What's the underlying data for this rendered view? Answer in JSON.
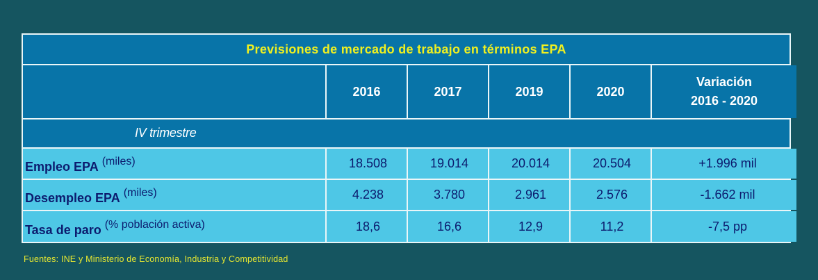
{
  "table": {
    "title": "Previsiones de mercado de trabajo en términos EPA",
    "headers": [
      "",
      "2016",
      "2017",
      "2019",
      "2020"
    ],
    "variation_header_line1": "Variación",
    "variation_header_line2": "2016 - 2020",
    "section_label": "IV trimestre",
    "rows": [
      {
        "label": "Empleo EPA",
        "unit": "(miles)",
        "values": [
          "18.508",
          "19.014",
          "20.014",
          "20.504"
        ],
        "variation": "+1.996 mil"
      },
      {
        "label": "Desempleo EPA",
        "unit": "(miles)",
        "values": [
          "4.238",
          "3.780",
          "2.961",
          "2.576"
        ],
        "variation": "-1.662 mil"
      },
      {
        "label": "Tasa de paro",
        "unit": "(% población activa)",
        "values": [
          "18,6",
          "16,6",
          "12,9",
          "11,2"
        ],
        "variation": "-7,5 pp"
      }
    ]
  },
  "footnote": "Fuentes: INE y Ministerio de Economía, Industria y Competitividad",
  "colors": {
    "background": "#155560",
    "header_blue": "#0874a8",
    "row_cyan": "#4ec7e6",
    "title_yellow": "#f0f020",
    "text_navy": "#0c1b6e"
  }
}
